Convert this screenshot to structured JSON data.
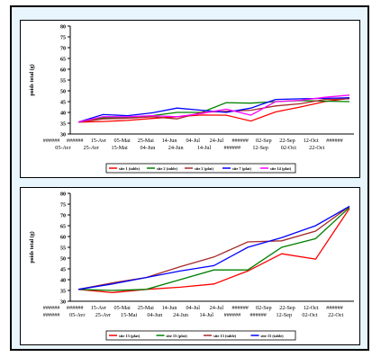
{
  "colors": {
    "frame_background": "#e8f5fc",
    "panel_background": "#ffffff",
    "series_red": "#ff0000",
    "series_green": "#008000",
    "series_brown": "#a52a2a",
    "series_blue": "#0000ff",
    "series_magenta": "#ff00ff"
  },
  "chart_data": [
    {
      "type": "line",
      "ylabel": "poids total (g)",
      "ylim": [
        30,
        80
      ],
      "yticks": [
        30,
        35,
        40,
        45,
        50,
        55,
        60,
        65,
        70,
        75,
        80
      ],
      "grid": false,
      "legend_position": "bottom",
      "x_ticks_row1": [
        "######",
        "######",
        "15-Avr",
        "05-Mai",
        "25-Mai",
        "14-Jun",
        "04-Jul",
        "24-Jul",
        "######",
        "02-Sep",
        "22-Sep",
        "12-Oct",
        "######"
      ],
      "x_ticks_row2": [
        "05-Avr",
        "25-Avr",
        "15-Mai",
        "04-Jun",
        "24-Jun",
        "14-Jul",
        "######",
        "12-Sep",
        "02-Oct",
        "22-Oct"
      ],
      "series": [
        {
          "name": "site 1 (table)",
          "color_key": "series_red",
          "values": [
            35.5,
            35.8,
            36.3,
            37.2,
            38.0,
            38.8,
            38.7,
            36.0,
            40.2,
            42.5,
            45.0,
            46.6
          ]
        },
        {
          "name": "site 2 (table)",
          "color_key": "series_green",
          "values": [
            35.5,
            37.5,
            37.5,
            38.5,
            40.0,
            40.0,
            44.5,
            44.3,
            45.0,
            45.5,
            45.2,
            45.0
          ]
        },
        {
          "name": "site 2 (plat)",
          "color_key": "series_brown",
          "values": [
            35.5,
            37.0,
            37.3,
            38.0,
            37.0,
            40.0,
            40.5,
            41.0,
            43.0,
            44.0,
            46.0,
            46.3
          ]
        },
        {
          "name": "site 7 (plat)",
          "color_key": "series_blue",
          "values": [
            35.5,
            39.0,
            38.5,
            39.8,
            42.0,
            41.0,
            40.0,
            42.0,
            46.0,
            46.3,
            46.5,
            46.8
          ]
        },
        {
          "name": "site 14 (plat)",
          "color_key": "series_magenta",
          "values": [
            35.5,
            38.0,
            38.0,
            38.5,
            38.0,
            39.5,
            41.5,
            38.7,
            45.0,
            45.6,
            47.0,
            48.0
          ]
        }
      ]
    },
    {
      "type": "line",
      "ylabel": "poids total (g)",
      "ylim": [
        30,
        80
      ],
      "yticks": [
        30,
        35,
        40,
        45,
        50,
        55,
        60,
        65,
        70,
        75,
        80
      ],
      "grid": false,
      "legend_position": "bottom",
      "x_ticks_row1": [
        "######",
        "######",
        "15-Avr",
        "05-Mai",
        "25-Mai",
        "14-Jun",
        "04-Jul",
        "24-Jul",
        "######",
        "02-Sep",
        "22-Sep",
        "12-Oct",
        "######"
      ],
      "x_ticks_row2": [
        "######",
        "05-Avr",
        "25-Avr",
        "15-Mai",
        "04-Jun",
        "24-Jun",
        "14-Jul",
        "######",
        "######",
        "12-Sep",
        "02-Oct",
        "22-Oct"
      ],
      "series": [
        {
          "name": "site 13 (plat)",
          "color_key": "series_red",
          "values": [
            35.5,
            34.0,
            35.5,
            36.5,
            38.0,
            44.0,
            52.0,
            49.5,
            73.0
          ]
        },
        {
          "name": "site 15 (plat)",
          "color_key": "series_green",
          "values": [
            35.5,
            35.0,
            35.5,
            40.0,
            44.5,
            44.5,
            55.0,
            59.0,
            73.5
          ]
        },
        {
          "name": "site 13 (table)",
          "color_key": "series_brown",
          "values": [
            35.5,
            38.5,
            41.0,
            46.0,
            50.5,
            57.5,
            58.0,
            62.5,
            74.0
          ]
        },
        {
          "name": "site 15 (table)",
          "color_key": "series_blue",
          "values": [
            35.5,
            38.0,
            41.0,
            44.0,
            46.5,
            55.0,
            59.5,
            65.0,
            74.0
          ]
        }
      ]
    }
  ]
}
